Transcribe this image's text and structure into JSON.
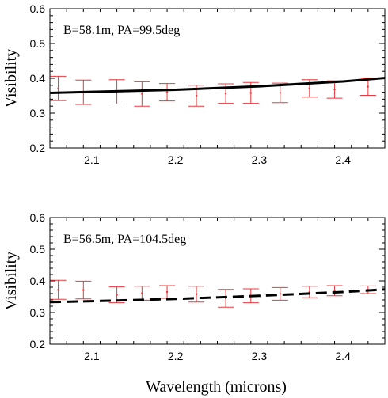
{
  "figure": {
    "xlabel": "Wavelength (microns)"
  },
  "chart_data": [
    {
      "type": "line",
      "annotation": "B=58.1m, PA=99.5deg",
      "ylabel": "Visibility",
      "xlim": [
        2.05,
        2.45
      ],
      "ylim": [
        0.2,
        0.6
      ],
      "xticks": [
        2.1,
        2.2,
        2.3,
        2.4
      ],
      "xtick_labels": [
        "2.1",
        "2.2",
        "2.3",
        "2.4"
      ],
      "yticks": [
        0.2,
        0.3,
        0.4,
        0.5,
        0.6
      ],
      "ytick_labels": [
        "0.2",
        "0.3",
        "0.4",
        "0.5",
        "0.6"
      ],
      "model_style": "solid",
      "model": {
        "x": [
          2.05,
          2.1,
          2.2,
          2.3,
          2.4,
          2.45
        ],
        "y": [
          0.358,
          0.361,
          0.367,
          0.377,
          0.391,
          0.401
        ]
      },
      "measurements": {
        "x": [
          2.06,
          2.09,
          2.13,
          2.16,
          2.19,
          2.225,
          2.26,
          2.29,
          2.325,
          2.36,
          2.39,
          2.43
        ],
        "y": [
          0.371,
          0.36,
          0.361,
          0.355,
          0.36,
          0.35,
          0.356,
          0.358,
          0.358,
          0.371,
          0.368,
          0.376
        ],
        "yerr": [
          0.035,
          0.035,
          0.035,
          0.035,
          0.025,
          0.03,
          0.028,
          0.03,
          0.028,
          0.025,
          0.025,
          0.025
        ],
        "color": "#e8383d"
      }
    },
    {
      "type": "line",
      "annotation": "B=56.5m, PA=104.5deg",
      "ylabel": "Visibility",
      "xlim": [
        2.05,
        2.45
      ],
      "ylim": [
        0.2,
        0.6
      ],
      "xticks": [
        2.1,
        2.2,
        2.3,
        2.4
      ],
      "xtick_labels": [
        "2.1",
        "2.2",
        "2.3",
        "2.4"
      ],
      "yticks": [
        0.2,
        0.3,
        0.4,
        0.5,
        0.6
      ],
      "ytick_labels": [
        "0.2",
        "0.3",
        "0.4",
        "0.5",
        "0.6"
      ],
      "model_style": "dashed",
      "model": {
        "x": [
          2.05,
          2.1,
          2.2,
          2.3,
          2.4,
          2.45
        ],
        "y": [
          0.333,
          0.336,
          0.343,
          0.353,
          0.365,
          0.373
        ]
      },
      "measurements": {
        "x": [
          2.06,
          2.09,
          2.13,
          2.16,
          2.19,
          2.225,
          2.26,
          2.29,
          2.325,
          2.36,
          2.39,
          2.43
        ],
        "y": [
          0.372,
          0.371,
          0.356,
          0.361,
          0.365,
          0.358,
          0.345,
          0.353,
          0.359,
          0.365,
          0.369,
          0.372
        ],
        "yerr": [
          0.03,
          0.028,
          0.025,
          0.022,
          0.02,
          0.025,
          0.028,
          0.022,
          0.02,
          0.018,
          0.016,
          0.012
        ],
        "color": "#e8383d"
      }
    }
  ]
}
